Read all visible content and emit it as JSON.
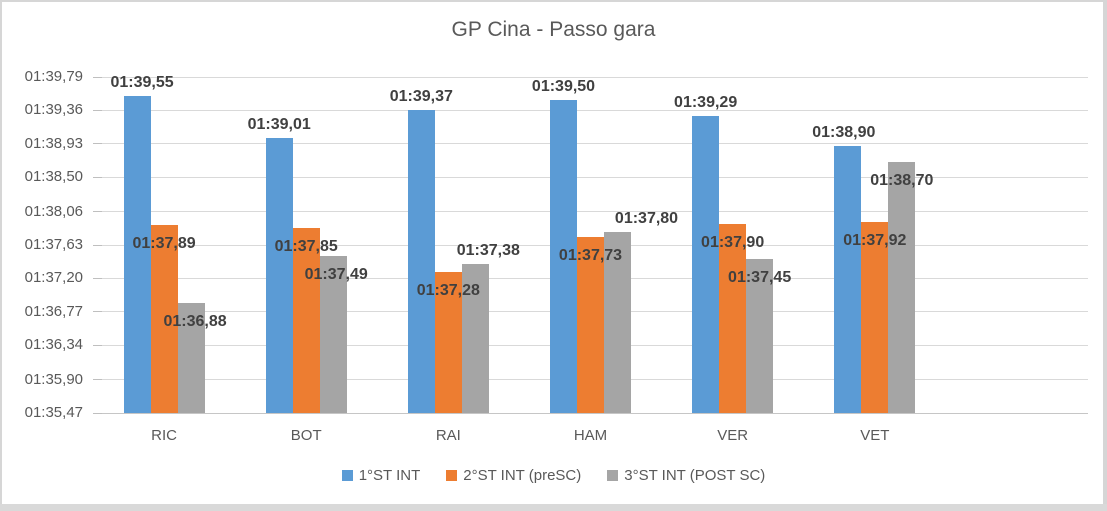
{
  "chart_data": {
    "type": "bar",
    "title": "GP Cina - Passo gara",
    "categories": [
      "RIC",
      "BOT",
      "RAI",
      "HAM",
      "VER",
      "VET"
    ],
    "series": [
      {
        "name": "1°ST INT",
        "color": "#5B9BD5",
        "values_seconds": [
          99.55,
          99.01,
          99.37,
          99.5,
          99.29,
          98.9
        ],
        "labels": [
          "01:39,55",
          "01:39,01",
          "01:39,37",
          "01:39,50",
          "01:39,29",
          "01:38,90"
        ],
        "label_placement": [
          "out",
          "out",
          "out",
          "out",
          "out",
          "out"
        ],
        "label_dx": [
          5,
          0,
          0,
          0,
          0,
          -4
        ]
      },
      {
        "name": "2°ST INT (preSC)",
        "color": "#ED7D31",
        "values_seconds": [
          97.89,
          97.85,
          97.28,
          97.73,
          97.9,
          97.92
        ],
        "labels": [
          "01:37,89",
          "01:37,85",
          "01:37,28",
          "01:37,73",
          "01:37,90",
          "01:37,92"
        ],
        "label_placement": [
          "in",
          "in",
          "in",
          "in",
          "in",
          "in"
        ],
        "label_dx": [
          0,
          0,
          0,
          0,
          0,
          0
        ]
      },
      {
        "name": "3°ST INT (POST SC)",
        "color": "#A5A5A5",
        "values_seconds": [
          96.88,
          97.49,
          97.38,
          97.8,
          97.45,
          98.7
        ],
        "labels": [
          "01:36,88",
          "01:37,49",
          "01:37,38",
          "01:37,80",
          "01:37,45",
          "01:38,70"
        ],
        "label_placement": [
          "in",
          "in",
          "out",
          "out",
          "in",
          "in"
        ],
        "label_dx": [
          4,
          3,
          13,
          29,
          0,
          0
        ]
      }
    ],
    "y_axis": {
      "min": 95.47,
      "max": 99.79,
      "ticks": [
        {
          "label": "01:39,79",
          "value": 99.79
        },
        {
          "label": "01:39,36",
          "value": 99.36
        },
        {
          "label": "01:38,93",
          "value": 98.93
        },
        {
          "label": "01:38,50",
          "value": 98.5
        },
        {
          "label": "01:38,06",
          "value": 98.06
        },
        {
          "label": "01:37,63",
          "value": 97.63
        },
        {
          "label": "01:37,20",
          "value": 97.2
        },
        {
          "label": "01:36,77",
          "value": 96.77
        },
        {
          "label": "01:36,34",
          "value": 96.34
        },
        {
          "label": "01:35,90",
          "value": 95.9
        },
        {
          "label": "01:35,47",
          "value": 95.47
        }
      ]
    },
    "legend": {
      "position": "bottom",
      "entries": [
        "1°ST INT",
        "2°ST INT (preSC)",
        "3°ST INT (POST SC)"
      ]
    },
    "grid": true,
    "layout": {
      "trailing_empty_slots": 1
    },
    "colors": {
      "series_blue": "#5B9BD5",
      "series_orange": "#ED7D31",
      "series_gray": "#A5A5A5",
      "gridline": "#D9D9D9",
      "axis_text": "#595959",
      "data_label_text": "#404040",
      "title_text": "#595959",
      "frame_border": "#D6D6D6",
      "background": "#FFFFFF"
    }
  }
}
